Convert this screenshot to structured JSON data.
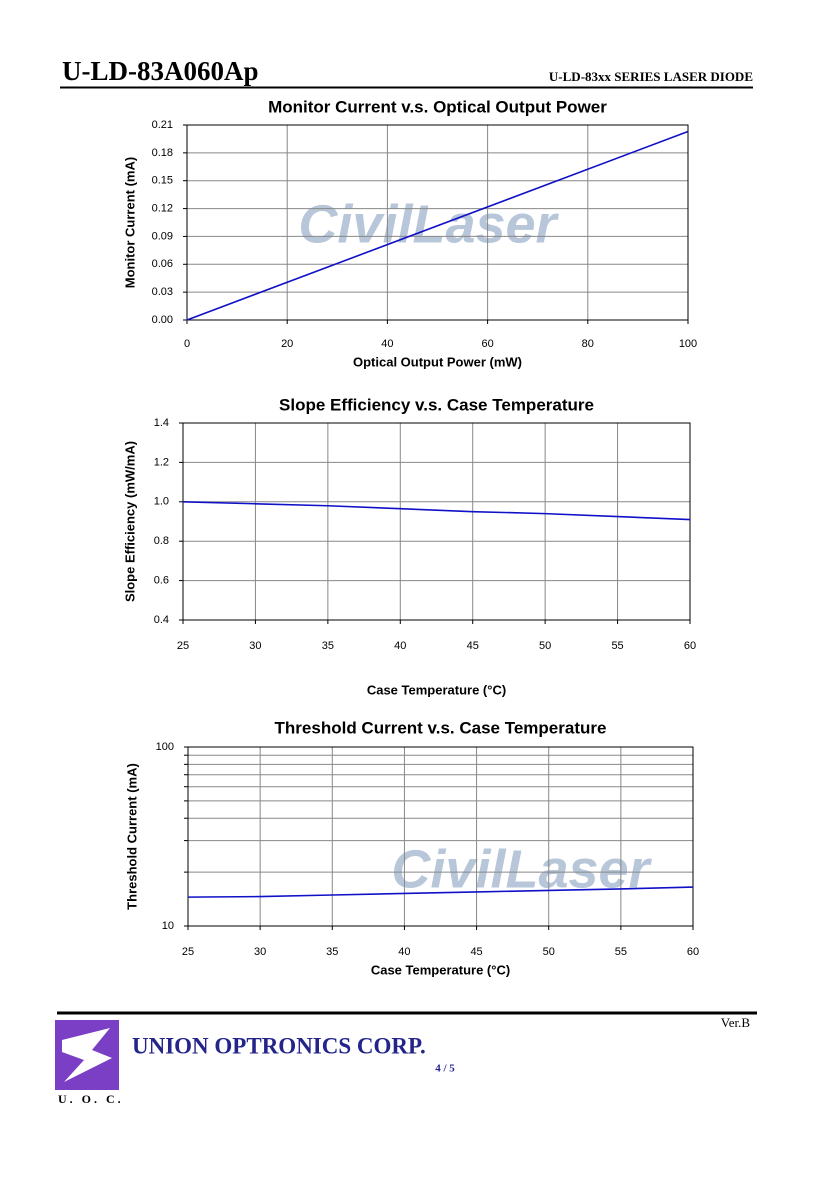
{
  "header": {
    "title": "U-LD-83A060Ap",
    "subtitle": "U-LD-83xx SERIES LASER DIODE"
  },
  "chart_data": [
    {
      "type": "line",
      "title": "Monitor Current v.s. Optical Output Power",
      "xlabel": "Optical Output Power (mW)",
      "ylabel": "Monitor Current (mA)",
      "x": [
        0,
        100
      ],
      "values": [
        0,
        0.203
      ],
      "color": "#1010c8",
      "xlim": [
        0,
        100
      ],
      "xticks": [
        0,
        20,
        40,
        60,
        80,
        100
      ],
      "ylim": [
        0,
        0.21
      ],
      "yticks": [
        {
          "value": 0,
          "label": "0.00"
        },
        0.03,
        0.06,
        0.09,
        0.12,
        0.15,
        0.18,
        0.21
      ],
      "grid": true,
      "watermark": "CivilLaser"
    },
    {
      "type": "line",
      "title": "Slope Efficiency v.s. Case Temperature",
      "xlabel": "Case Temperature (°C)",
      "ylabel": "Slope Efficiency (mW/mA)",
      "x": [
        25,
        30,
        35,
        40,
        45,
        50,
        55,
        60
      ],
      "values": [
        1.0,
        0.99,
        0.98,
        0.965,
        0.95,
        0.94,
        0.925,
        0.91
      ],
      "color": "#1010c8",
      "xlim": [
        25,
        60
      ],
      "xticks": [
        25,
        30,
        35,
        40,
        45,
        50,
        55,
        60
      ],
      "ylim": [
        0.4,
        1.4
      ],
      "yticks": [
        0.4,
        0.6,
        0.8,
        {
          "value": 1,
          "label": "1.0"
        },
        1.2,
        1.4
      ],
      "grid": true
    },
    {
      "type": "line",
      "title": "Threshold Current v.s. Case Temperature",
      "xlabel": "Case Temperature (°C)",
      "ylabel": "Threshold Current (mA)",
      "x": [
        25,
        30,
        35,
        40,
        45,
        50,
        55,
        60
      ],
      "values": [
        14.5,
        14.6,
        14.9,
        15.2,
        15.5,
        15.8,
        16.1,
        16.5
      ],
      "color": "#1010c8",
      "xlim": [
        25,
        60
      ],
      "xticks": [
        25,
        30,
        35,
        40,
        45,
        50,
        55,
        60
      ],
      "ylim": [
        10,
        100
      ],
      "yticks": [
        10,
        100
      ],
      "yminor": [
        20,
        30,
        40,
        50,
        60,
        70,
        80,
        90
      ],
      "yscale": "log",
      "grid": true,
      "watermark": "CivilLaser"
    }
  ],
  "footer": {
    "company": "UNION OPTRONICS CORP.",
    "logo_text": "U. O. C.",
    "page": "4 / 5",
    "version": "Ver.B"
  }
}
